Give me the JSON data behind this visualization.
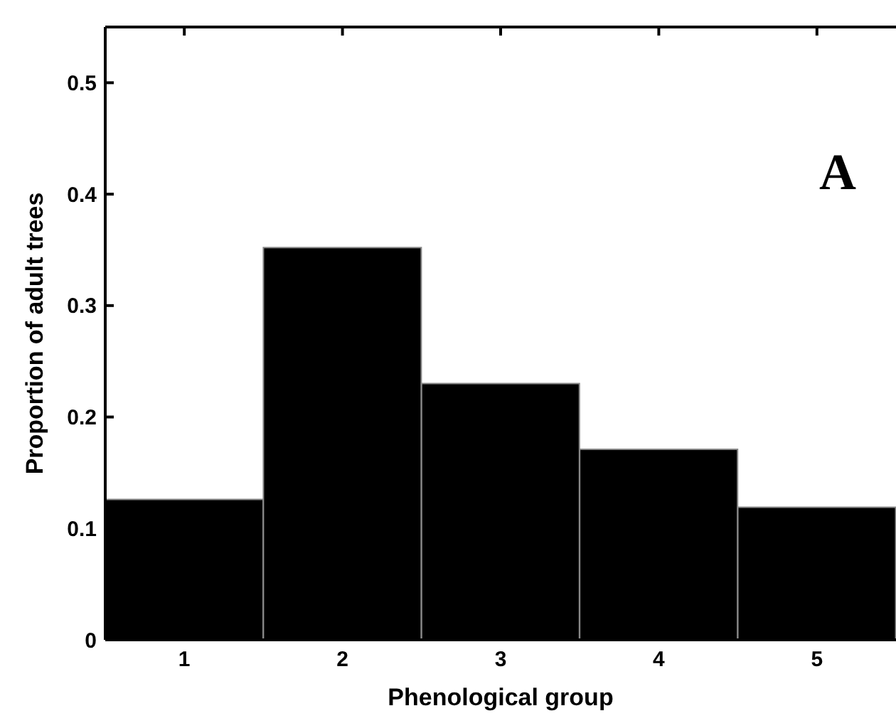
{
  "chart_data": {
    "type": "bar",
    "xlabel": "Phenological group",
    "ylabel": "Proportion of adult trees",
    "categories": [
      "1",
      "2",
      "3",
      "4",
      "5"
    ],
    "values": [
      0.126,
      0.352,
      0.23,
      0.171,
      0.119
    ],
    "color": "#000000",
    "ylim": [
      0,
      0.55
    ],
    "yticks": [
      0,
      0.1,
      0.2,
      0.3,
      0.4,
      0.5
    ],
    "annotations": [
      "A"
    ]
  }
}
